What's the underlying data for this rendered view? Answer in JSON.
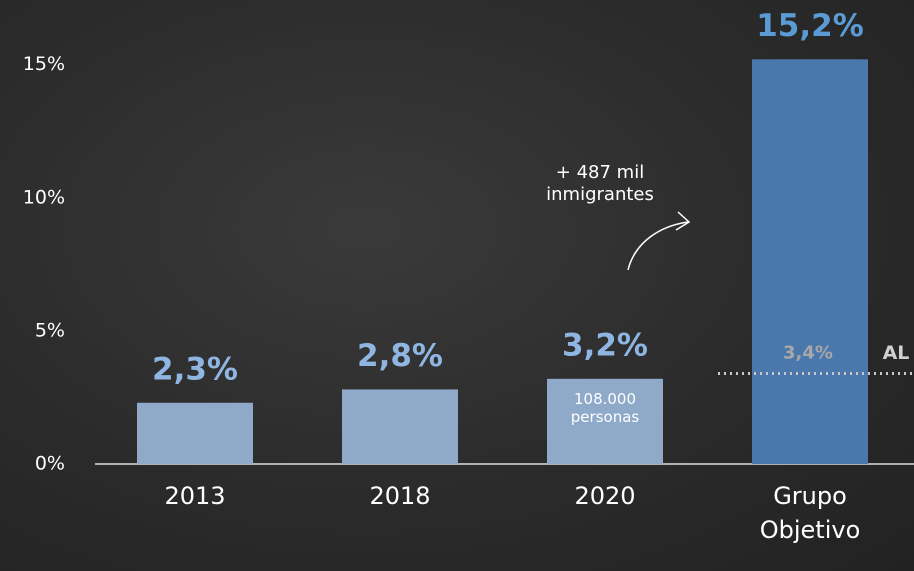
{
  "chart_data": {
    "type": "bar",
    "categories": [
      "2013",
      "2018",
      "2020",
      "Grupo Objetivo"
    ],
    "values": [
      2.3,
      2.8,
      3.2,
      15.2
    ],
    "value_labels": [
      "2,3%",
      "2,8%",
      "3,2%",
      "15,2%"
    ],
    "colors": [
      "#8fa9c8",
      "#8fa9c8",
      "#8fa9c8",
      "#4a78ad"
    ],
    "label_colors": [
      "#8fb6e3",
      "#8fb6e3",
      "#8fb6e3",
      "#5b9bd5"
    ],
    "ylim": [
      0,
      16
    ],
    "yticks": [
      {
        "value": 0,
        "label": "0%"
      },
      {
        "value": 5,
        "label": "5%"
      },
      {
        "value": 10,
        "label": "10%"
      },
      {
        "value": 15,
        "label": "15%"
      }
    ],
    "reference_line": {
      "value": 3.4,
      "label": "3,4%",
      "name": "AL"
    },
    "annotations": [
      "+ 487 mil inmigrantes",
      "108.000 personas"
    ]
  }
}
